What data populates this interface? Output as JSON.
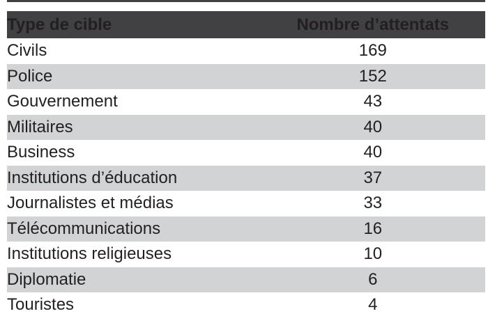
{
  "colors": {
    "header_bg": "#414042",
    "header_text": "#ffffff",
    "row_bg": "#ffffff",
    "row_alt_bg": "#d1d3d4",
    "body_text": "#231f20",
    "top_rule": "#414042"
  },
  "chart_data": {
    "type": "table",
    "title": "",
    "columns": [
      "Type de cible",
      "Nombre d’attentats"
    ],
    "rows": [
      {
        "label": "Civils",
        "value": 169
      },
      {
        "label": "Police",
        "value": 152
      },
      {
        "label": "Gouvernement",
        "value": 43
      },
      {
        "label": "Militaires",
        "value": 40
      },
      {
        "label": "Business",
        "value": 40
      },
      {
        "label": "Institutions d’éducation",
        "value": 37
      },
      {
        "label": "Journalistes et médias",
        "value": 33
      },
      {
        "label": "Télécommunications",
        "value": 16
      },
      {
        "label": "Institutions religieuses",
        "value": 10
      },
      {
        "label": "Diplomatie",
        "value": 6
      },
      {
        "label": "Touristes",
        "value": 4
      }
    ]
  }
}
